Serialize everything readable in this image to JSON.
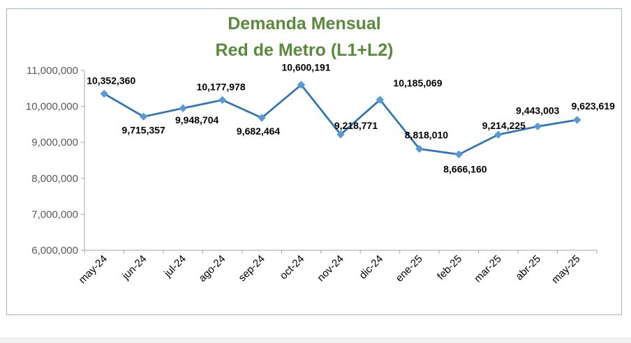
{
  "chart_data": {
    "type": "line",
    "title": "Demanda Mensual",
    "subtitle": "Red de Metro (L1+L2)",
    "xlabel": "",
    "ylabel": "",
    "categories": [
      "may-24",
      "jun-24",
      "jul-24",
      "ago-24",
      "sep-24",
      "oct-24",
      "nov-24",
      "dic-24",
      "ene-25",
      "feb-25",
      "mar-25",
      "abr-25",
      "may-25"
    ],
    "series": [
      {
        "values": [
          10352360,
          9715357,
          9948704,
          10177978,
          9682464,
          10600191,
          9218771,
          10185069,
          8818010,
          8666160,
          9214225,
          9443003,
          9623619
        ],
        "labels": [
          "10,352,360",
          "9,715,357",
          "9,948,704",
          "10,177,978",
          "9,682,464",
          "10,600,191",
          "9,218,771",
          "10,185,069",
          "8,818,010",
          "8,666,160",
          "9,214,225",
          "9,443,003",
          "9,623,619"
        ],
        "color": "#2e75b6",
        "marker_color": "#5b9bd5"
      }
    ],
    "ylim": [
      6000000,
      11000000
    ],
    "yticks": [
      6000000,
      7000000,
      8000000,
      9000000,
      10000000,
      11000000
    ],
    "ytick_labels": [
      "6,000,000",
      "7,000,000",
      "8,000,000",
      "9,000,000",
      "10,000,000",
      "11,000,000"
    ],
    "grid": false,
    "legend": "none",
    "title_color": "#5a8a3c",
    "axis_color": "#a6a6a6"
  }
}
